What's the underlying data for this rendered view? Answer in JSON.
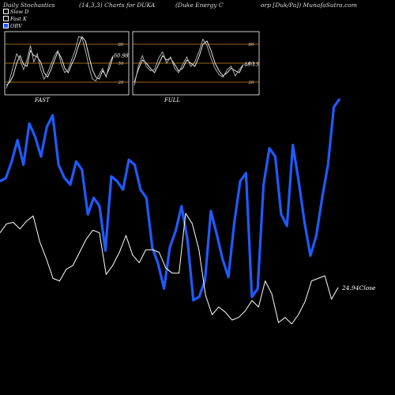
{
  "header": {
    "title_left": "Daily Stochastics",
    "params": "(14,3,3) Charts for DUKA",
    "company_part1": "(Duke   Energy C",
    "company_part2": "orp [Duk/Pa]) MunafaSutra.com"
  },
  "legend": {
    "items": [
      {
        "label": "Slow  D",
        "color": "#ffffff"
      },
      {
        "label": "Fast K",
        "color": "#ffffff"
      },
      {
        "label": "OBV",
        "color": "#1e5bff"
      }
    ]
  },
  "chart_data": [
    {
      "type": "line",
      "panel_label": "FAST",
      "value_label": "60.98",
      "y_ticks": [
        "80",
        "50",
        "20"
      ],
      "ylim": [
        0,
        100
      ],
      "series": [
        {
          "name": "Slow  D",
          "values": [
            15,
            20,
            30,
            50,
            62,
            48,
            45,
            70,
            62,
            60,
            52,
            35,
            28,
            40,
            55,
            68,
            58,
            42,
            35,
            48,
            60,
            78,
            92,
            85,
            62,
            40,
            28,
            25,
            38,
            30,
            42,
            60
          ]
        },
        {
          "name": "Fast K",
          "values": [
            10,
            25,
            45,
            65,
            55,
            40,
            55,
            78,
            52,
            65,
            40,
            25,
            35,
            48,
            62,
            70,
            48,
            35,
            40,
            55,
            70,
            92,
            90,
            70,
            45,
            25,
            22,
            32,
            42,
            28,
            50,
            62
          ]
        }
      ]
    },
    {
      "type": "line",
      "panel_label": "FULL",
      "value_label": "48.13",
      "y_ticks": [
        "80",
        "50",
        "20"
      ],
      "ylim": [
        0,
        100
      ],
      "series": [
        {
          "name": "Slow  D",
          "values": [
            20,
            40,
            55,
            50,
            42,
            35,
            48,
            62,
            55,
            58,
            48,
            38,
            42,
            55,
            50,
            45,
            60,
            80,
            85,
            70,
            50,
            38,
            30,
            35,
            42,
            38,
            35,
            48
          ]
        },
        {
          "name": "Fast K",
          "values": [
            15,
            45,
            62,
            45,
            38,
            40,
            58,
            68,
            50,
            60,
            42,
            35,
            48,
            60,
            45,
            52,
            68,
            88,
            78,
            58,
            42,
            32,
            28,
            40,
            45,
            30,
            40,
            48
          ]
        }
      ]
    },
    {
      "type": "line",
      "panel_label": "",
      "value_label": "24.94Close",
      "series": [
        {
          "name": "OBV",
          "color": "#1e5bff",
          "values": [
            150,
            152,
            162,
            175,
            160,
            185,
            177,
            165,
            183,
            190,
            160,
            152,
            148,
            162,
            157,
            130,
            140,
            135,
            108,
            153,
            150,
            145,
            163,
            160,
            145,
            140,
            110,
            100,
            85,
            110,
            120,
            135,
            115,
            78,
            80,
            90,
            132,
            118,
            103,
            92,
            125,
            150,
            155,
            80,
            85,
            148,
            170,
            165,
            130,
            123,
            172,
            150,
            125,
            105,
            117,
            140,
            160,
            195,
            200
          ]
        },
        {
          "name": "Close",
          "color": "#ffffff",
          "values": [
            1.05,
            1.12,
            1.13,
            1.08,
            1.14,
            1.18,
            0.98,
            0.85,
            0.7,
            0.68,
            0.77,
            0.8,
            0.9,
            1.0,
            1.07,
            1.05,
            0.73,
            0.8,
            0.9,
            1.03,
            0.88,
            0.82,
            0.92,
            0.92,
            0.9,
            0.78,
            0.74,
            0.74,
            1.2,
            1.12,
            0.92,
            0.57,
            0.42,
            0.48,
            0.44,
            0.38,
            0.4,
            0.45,
            0.53,
            0.48,
            0.68,
            0.58,
            0.36,
            0.4,
            0.35,
            0.42,
            0.52,
            0.68,
            0.7,
            0.72,
            0.54,
            0.63
          ]
        }
      ]
    }
  ]
}
